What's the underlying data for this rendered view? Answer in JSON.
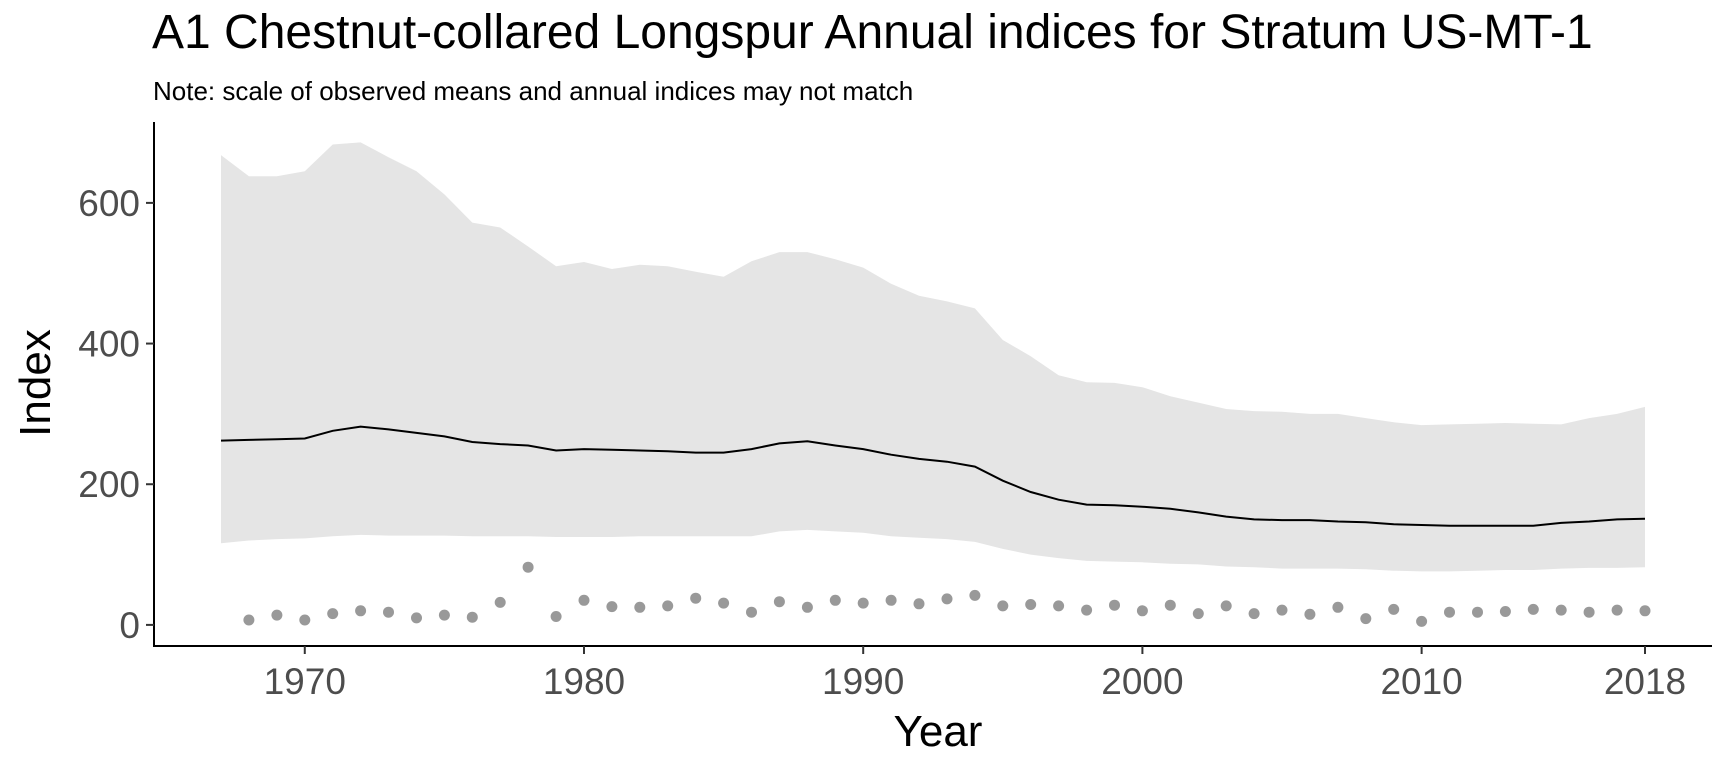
{
  "chart_data": {
    "type": "line",
    "title": "A1 Chestnut-collared Longspur Annual indices for Stratum US-MT-1",
    "subtitle": "Note: scale of observed means and annual indices may not match",
    "xlabel": "Year",
    "ylabel": "Index",
    "xlim": [
      1964.6,
      1970.0
    ],
    "ylim": [
      -30,
      715
    ],
    "x_ticks": [
      1970,
      1980,
      1990,
      2000,
      2010,
      2018
    ],
    "y_ticks": [
      0,
      200,
      400,
      600
    ],
    "grid": false,
    "legend": "none",
    "colors": {
      "ribbon": "#e5e5e5",
      "line": "#000000",
      "points": "#999999",
      "axis": "#000000",
      "tick_text": "#4d4d4d"
    },
    "years": [
      1967,
      1968,
      1969,
      1970,
      1971,
      1972,
      1973,
      1974,
      1975,
      1976,
      1977,
      1978,
      1979,
      1980,
      1981,
      1982,
      1983,
      1984,
      1985,
      1986,
      1987,
      1988,
      1989,
      1990,
      1991,
      1992,
      1993,
      1994,
      1995,
      1996,
      1997,
      1998,
      1999,
      2000,
      2001,
      2002,
      2003,
      2004,
      2005,
      2006,
      2007,
      2008,
      2009,
      2010,
      2011,
      2012,
      2013,
      2014,
      2015,
      2016,
      2017,
      2018
    ],
    "series": [
      {
        "name": "Annual index",
        "kind": "line",
        "values": [
          262,
          263,
          264,
          265,
          276,
          282,
          278,
          273,
          268,
          260,
          257,
          255,
          248,
          250,
          249,
          248,
          247,
          245,
          245,
          250,
          258,
          261,
          255,
          250,
          242,
          236,
          232,
          225,
          205,
          189,
          178,
          171,
          170,
          168,
          165,
          160,
          154,
          150,
          149,
          149,
          147,
          146,
          143,
          142,
          141,
          141,
          141,
          141,
          145,
          147,
          150,
          151
        ]
      },
      {
        "name": "Upper credible limit",
        "kind": "ribbon_upper",
        "values": [
          668,
          638,
          638,
          645,
          683,
          686,
          665,
          645,
          612,
          572,
          565,
          538,
          510,
          516,
          506,
          512,
          510,
          502,
          495,
          517,
          530,
          530,
          520,
          508,
          485,
          468,
          460,
          450,
          405,
          382,
          355,
          345,
          344,
          338,
          325,
          316,
          307,
          304,
          303,
          300,
          300,
          294,
          288,
          284,
          285,
          286,
          287,
          286,
          285,
          294,
          300,
          310
        ]
      },
      {
        "name": "Lower credible limit",
        "kind": "ribbon_lower",
        "values": [
          116,
          120,
          122,
          123,
          126,
          128,
          127,
          127,
          127,
          126,
          126,
          126,
          125,
          125,
          125,
          126,
          126,
          126,
          126,
          126,
          133,
          135,
          133,
          131,
          126,
          124,
          122,
          118,
          108,
          100,
          95,
          91,
          90,
          89,
          87,
          86,
          83,
          82,
          80,
          80,
          80,
          79,
          77,
          76,
          76,
          77,
          78,
          78,
          80,
          81,
          81,
          82
        ]
      },
      {
        "name": "Observed mean",
        "kind": "points",
        "x": [
          1968,
          1969,
          1970,
          1971,
          1972,
          1973,
          1974,
          1975,
          1976,
          1977,
          1978,
          1979,
          1980,
          1981,
          1982,
          1983,
          1984,
          1985,
          1986,
          1987,
          1988,
          1989,
          1990,
          1991,
          1992,
          1993,
          1994,
          1995,
          1996,
          1997,
          1998,
          1999,
          2000,
          2001,
          2002,
          2003,
          2004,
          2005,
          2006,
          2007,
          2008,
          2009,
          2010,
          2011,
          2012,
          2013,
          2014,
          2015,
          2016,
          2017,
          2018
        ],
        "values": [
          7,
          14,
          7,
          16,
          20,
          18,
          10,
          14,
          11,
          32,
          82,
          12,
          35,
          26,
          25,
          27,
          38,
          31,
          18,
          33,
          25,
          35,
          31,
          35,
          30,
          37,
          42,
          27,
          29,
          27,
          21,
          28,
          20,
          28,
          16,
          27,
          16,
          21,
          15,
          25,
          9,
          22,
          5,
          18,
          18,
          19,
          22,
          21,
          18,
          21,
          20
        ]
      }
    ]
  }
}
